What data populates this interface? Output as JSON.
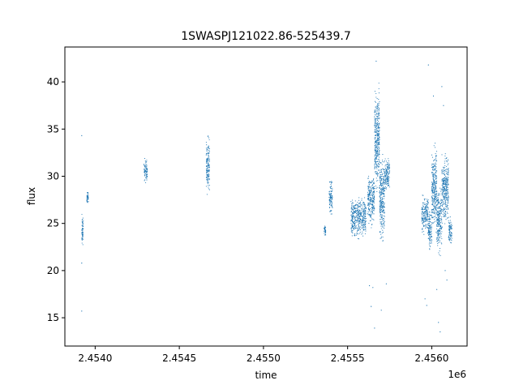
{
  "chart_data": {
    "type": "scatter",
    "title": "1SWASPJ121022.86-525439.7",
    "xlabel": "time",
    "ylabel": "flux",
    "x_offset_label": "1e6",
    "xlim": [
      2.45382,
      2.45621
    ],
    "ylim": [
      12.0,
      43.7
    ],
    "x_ticks": [
      {
        "value": 2.454,
        "label": "2.4540"
      },
      {
        "value": 2.4545,
        "label": "2.4545"
      },
      {
        "value": 2.455,
        "label": "2.4550"
      },
      {
        "value": 2.4555,
        "label": "2.4555"
      },
      {
        "value": 2.456,
        "label": "2.4560"
      }
    ],
    "y_ticks": [
      {
        "value": 15,
        "label": "15"
      },
      {
        "value": 20,
        "label": "20"
      },
      {
        "value": 25,
        "label": "25"
      },
      {
        "value": 30,
        "label": "30"
      },
      {
        "value": 35,
        "label": "35"
      },
      {
        "value": 40,
        "label": "40"
      }
    ],
    "grid": false,
    "legend": "none",
    "marker_color": "#1f77b4",
    "segments": [
      {
        "x": [
          2.45392,
          2.45393
        ],
        "y": [
          22.2,
          26.5
        ]
      },
      {
        "x": [
          2.45395,
          2.45396
        ],
        "y": [
          27.0,
          28.5
        ]
      },
      {
        "x": [
          2.45429,
          2.45431
        ],
        "y": [
          29.0,
          32.2
        ]
      },
      {
        "x": [
          2.45466,
          2.45468
        ],
        "y": [
          27.2,
          34.8
        ]
      },
      {
        "x": [
          2.45536,
          2.45537
        ],
        "y": [
          23.5,
          25.0
        ]
      },
      {
        "x": [
          2.45539,
          2.45541
        ],
        "y": [
          25.5,
          30.0
        ]
      },
      {
        "x": [
          2.45552,
          2.45561
        ],
        "y": [
          23.0,
          28.5
        ]
      },
      {
        "x": [
          2.45562,
          2.45566
        ],
        "y": [
          24.0,
          31.0
        ]
      },
      {
        "x": [
          2.45566,
          2.45569
        ],
        "y": [
          27.0,
          40.8
        ]
      },
      {
        "x": [
          2.45569,
          2.45572
        ],
        "y": [
          22.0,
          33.0
        ]
      },
      {
        "x": [
          2.45572,
          2.45575
        ],
        "y": [
          28.0,
          32.5
        ]
      },
      {
        "x": [
          2.45594,
          2.45598
        ],
        "y": [
          23.5,
          28.5
        ]
      },
      {
        "x": [
          2.45598,
          2.456
        ],
        "y": [
          21.5,
          27.0
        ]
      },
      {
        "x": [
          2.456,
          2.45603
        ],
        "y": [
          23.0,
          34.3
        ]
      },
      {
        "x": [
          2.45603,
          2.45606
        ],
        "y": [
          21.0,
          30.0
        ]
      },
      {
        "x": [
          2.45606,
          2.4561
        ],
        "y": [
          24.0,
          33.0
        ]
      },
      {
        "x": [
          2.4561,
          2.45612
        ],
        "y": [
          22.5,
          26.0
        ]
      }
    ],
    "outliers": [
      {
        "x": 2.45392,
        "y": 15.7
      },
      {
        "x": 2.45392,
        "y": 34.3
      },
      {
        "x": 2.45392,
        "y": 20.8
      },
      {
        "x": 2.45563,
        "y": 18.4
      },
      {
        "x": 2.45565,
        "y": 18.2
      },
      {
        "x": 2.45564,
        "y": 16.2
      },
      {
        "x": 2.45566,
        "y": 13.9
      },
      {
        "x": 2.45567,
        "y": 42.2
      },
      {
        "x": 2.4557,
        "y": 15.8
      },
      {
        "x": 2.45573,
        "y": 18.6
      },
      {
        "x": 2.45596,
        "y": 17.0
      },
      {
        "x": 2.45597,
        "y": 16.3
      },
      {
        "x": 2.45598,
        "y": 41.8
      },
      {
        "x": 2.45601,
        "y": 38.5
      },
      {
        "x": 2.45603,
        "y": 18.0
      },
      {
        "x": 2.45604,
        "y": 14.5
      },
      {
        "x": 2.45605,
        "y": 13.5
      },
      {
        "x": 2.45606,
        "y": 39.5
      },
      {
        "x": 2.45607,
        "y": 37.5
      },
      {
        "x": 2.45609,
        "y": 19.0
      },
      {
        "x": 2.45608,
        "y": 20.0
      }
    ]
  }
}
